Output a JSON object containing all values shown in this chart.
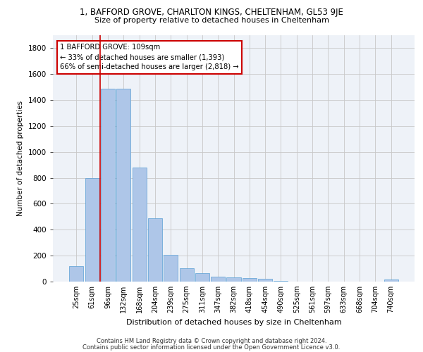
{
  "title_line1": "1, BAFFORD GROVE, CHARLTON KINGS, CHELTENHAM, GL53 9JE",
  "title_line2": "Size of property relative to detached houses in Cheltenham",
  "xlabel": "Distribution of detached houses by size in Cheltenham",
  "ylabel": "Number of detached properties",
  "footer_line1": "Contains HM Land Registry data © Crown copyright and database right 2024.",
  "footer_line2": "Contains public sector information licensed under the Open Government Licence v3.0.",
  "categories": [
    "25sqm",
    "61sqm",
    "96sqm",
    "132sqm",
    "168sqm",
    "204sqm",
    "239sqm",
    "275sqm",
    "311sqm",
    "347sqm",
    "382sqm",
    "418sqm",
    "454sqm",
    "490sqm",
    "525sqm",
    "561sqm",
    "597sqm",
    "633sqm",
    "668sqm",
    "704sqm",
    "740sqm"
  ],
  "values": [
    120,
    800,
    1490,
    1490,
    880,
    490,
    205,
    105,
    65,
    40,
    30,
    25,
    20,
    5,
    0,
    0,
    0,
    0,
    0,
    0,
    15
  ],
  "bar_color": "#aec6e8",
  "bar_edgecolor": "#5a9fd4",
  "annotation_line1": "1 BAFFORD GROVE: 109sqm",
  "annotation_line2": "← 33% of detached houses are smaller (1,393)",
  "annotation_line3": "66% of semi-detached houses are larger (2,818) →",
  "vline_color": "#cc0000",
  "vline_index": 2,
  "ylim": [
    0,
    1900
  ],
  "yticks": [
    0,
    200,
    400,
    600,
    800,
    1000,
    1200,
    1400,
    1600,
    1800
  ],
  "background_color": "#eef2f8",
  "grid_color": "#c8c8c8",
  "figsize": [
    6.0,
    5.0
  ],
  "dpi": 100
}
